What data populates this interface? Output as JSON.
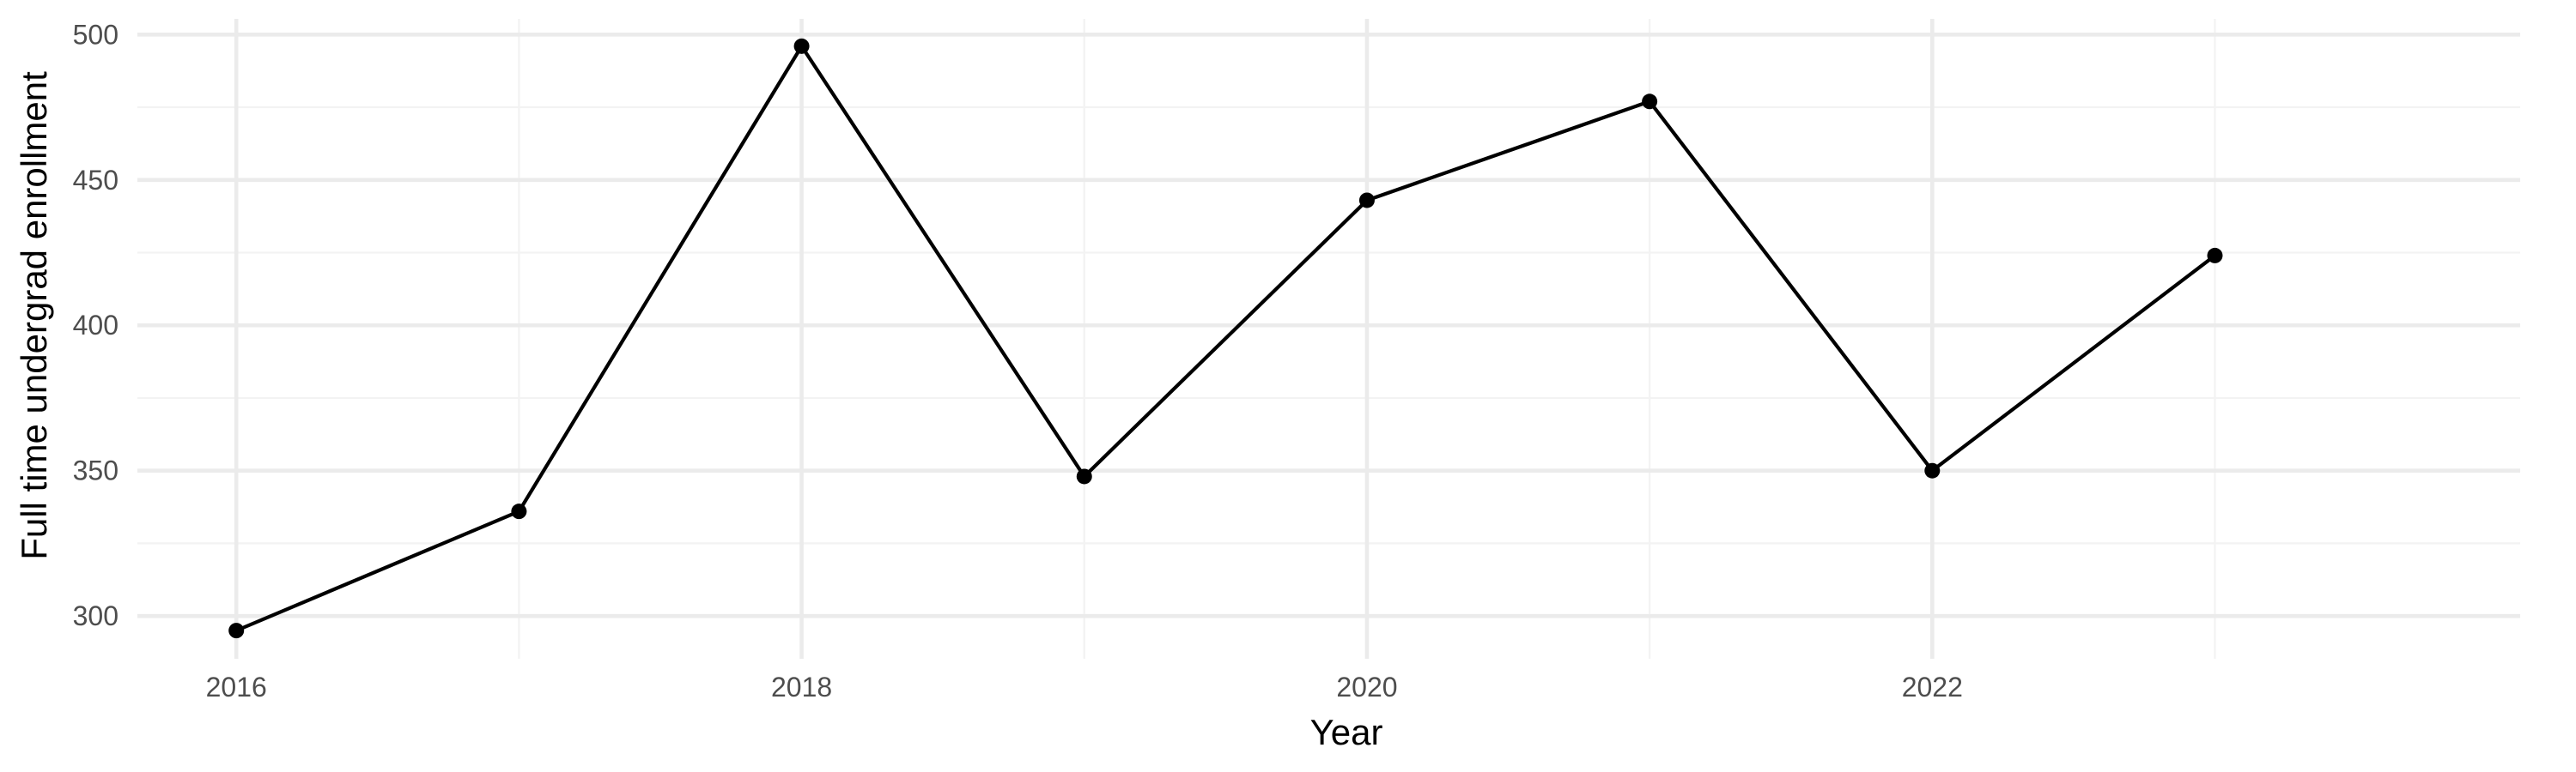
{
  "chart_data": {
    "type": "line",
    "title": "",
    "xlabel": "Year",
    "ylabel": "Full time undergrad enrollment",
    "x": [
      2016,
      2017,
      2018,
      2019,
      2020,
      2021,
      2022,
      2023
    ],
    "series": [
      {
        "values": [
          295,
          336,
          496,
          348,
          443,
          477,
          350,
          424
        ]
      }
    ],
    "x_ticks": [
      2016,
      2018,
      2020,
      2022
    ],
    "x_tick_labels": [
      "2016",
      "2018",
      "2020",
      "2022"
    ],
    "y_ticks": [
      300,
      350,
      400,
      450,
      500
    ],
    "y_tick_labels": [
      "300",
      "350",
      "400",
      "450",
      "500"
    ],
    "xlim": [
      2015.65,
      2024.08
    ],
    "ylim": [
      285.3,
      505.4
    ],
    "grid": true,
    "legend": "none",
    "colors": {
      "line": "#000000",
      "point": "#000000",
      "grid": "#ebebeb",
      "tick_text": "#4d4d4d"
    }
  }
}
